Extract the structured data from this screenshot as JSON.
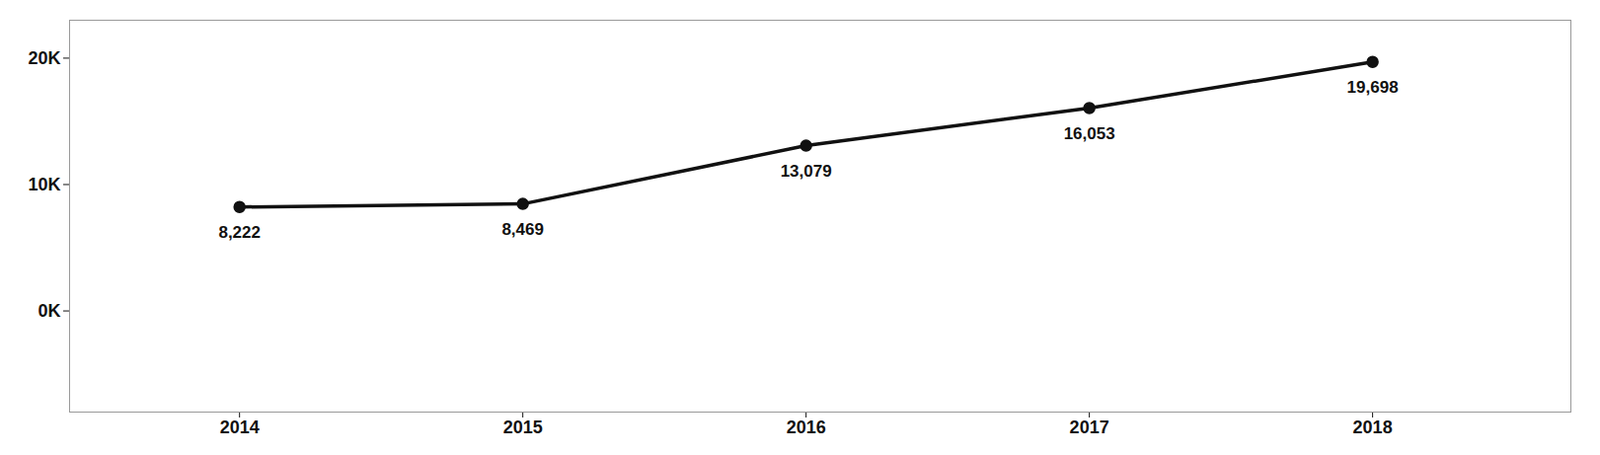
{
  "chart_data": {
    "type": "line",
    "x": [
      2014,
      2015,
      2016,
      2017,
      2018
    ],
    "values": [
      8222,
      8469,
      13079,
      16053,
      19698
    ],
    "value_labels": [
      "8,222",
      "8,469",
      "13,079",
      "16,053",
      "19,698"
    ],
    "data_labels": true,
    "color": "#111111",
    "marker": "circle",
    "xlim": [
      2013.4,
      2018.7
    ],
    "xticks": [
      2014,
      2015,
      2016,
      2017,
      2018
    ],
    "ylim": [
      -8000,
      23000
    ],
    "yticks": [
      {
        "value": 0,
        "label": "0K"
      },
      {
        "value": 10000,
        "label": "10K"
      },
      {
        "value": 20000,
        "label": "20K"
      }
    ],
    "grid": false
  }
}
